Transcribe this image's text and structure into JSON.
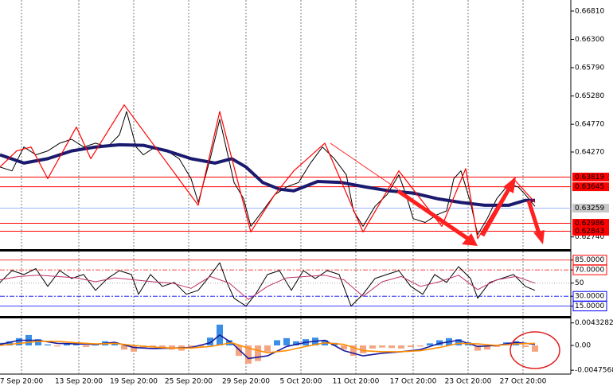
{
  "chart_data": [
    {
      "type": "line",
      "xlim": [
        0,
        239
      ],
      "ylim": [
        0.6252,
        0.6701
      ],
      "grid": true,
      "yticks": [
        {
          "value": 0.6681,
          "label": "0.66810"
        },
        {
          "value": 0.663,
          "label": "0.66300"
        },
        {
          "value": 0.6579,
          "label": "0.65790"
        },
        {
          "value": 0.6528,
          "label": "0.65280"
        },
        {
          "value": 0.6477,
          "label": "0.64770"
        },
        {
          "value": 0.6427,
          "label": "0.64270"
        },
        {
          "value": 0.6274,
          "label": "0.62740"
        }
      ],
      "levels": [
        {
          "value": 0.63819,
          "color": "#ff0000"
        },
        {
          "value": 0.63645,
          "color": "#ff0000"
        },
        {
          "value": 0.63259,
          "color": "#9db4ff"
        },
        {
          "value": 0.62986,
          "color": "#ff0000"
        },
        {
          "value": 0.62843,
          "color": "#ff0000"
        }
      ],
      "series": [
        {
          "color": "#000000",
          "width": 1,
          "x": [
            0,
            5,
            10,
            15,
            20,
            25,
            30,
            35,
            40,
            45,
            50,
            53,
            57,
            60,
            65,
            70,
            75,
            80,
            83,
            88,
            92,
            95,
            98,
            102,
            105,
            110,
            115,
            120,
            125,
            130,
            135,
            140,
            145,
            148,
            152,
            157,
            162,
            167,
            170,
            173,
            178,
            183,
            187,
            190,
            193,
            197,
            200,
            204,
            208,
            213,
            217,
            220,
            224
          ],
          "values": [
            0.64,
            0.6393,
            0.6436,
            0.6422,
            0.6429,
            0.6443,
            0.645,
            0.6436,
            0.6443,
            0.6436,
            0.6458,
            0.65,
            0.6436,
            0.6422,
            0.6436,
            0.6429,
            0.6415,
            0.6379,
            0.6336,
            0.6415,
            0.6486,
            0.6429,
            0.6372,
            0.6343,
            0.6293,
            0.6321,
            0.635,
            0.6364,
            0.6372,
            0.6407,
            0.6436,
            0.6415,
            0.6386,
            0.6321,
            0.6293,
            0.6329,
            0.635,
            0.6386,
            0.635,
            0.6307,
            0.63,
            0.6314,
            0.6321,
            0.6379,
            0.6393,
            0.6336,
            0.6278,
            0.6307,
            0.6343,
            0.6369,
            0.6364,
            0.635,
            0.6329
          ]
        },
        {
          "color": "#1a1a6e",
          "width": 4,
          "x": [
            0,
            10,
            20,
            30,
            40,
            50,
            60,
            70,
            80,
            90,
            97,
            103,
            110,
            117,
            123,
            133,
            143,
            153,
            163,
            173,
            183,
            193,
            203,
            213,
            220,
            224
          ],
          "values": [
            0.6422,
            0.6407,
            0.6415,
            0.6429,
            0.6436,
            0.644,
            0.6439,
            0.6429,
            0.6415,
            0.6407,
            0.6415,
            0.64,
            0.6372,
            0.636,
            0.6357,
            0.6374,
            0.6372,
            0.6364,
            0.6357,
            0.6353,
            0.6343,
            0.6336,
            0.6331,
            0.6331,
            0.634,
            0.634
          ]
        },
        {
          "color": "#ff0000",
          "width": 1.2,
          "x": [
            0,
            7,
            13,
            20,
            32,
            38,
            52,
            65,
            83,
            92,
            105,
            115,
            123,
            136,
            152,
            167,
            185,
            195,
            200,
            215,
            224
          ],
          "values": [
            0.64,
            0.6429,
            0.6436,
            0.6379,
            0.6472,
            0.6415,
            0.6512,
            0.6436,
            0.6331,
            0.65,
            0.6283,
            0.635,
            0.6393,
            0.6443,
            0.6283,
            0.6393,
            0.6293,
            0.6397,
            0.6271,
            0.6379,
            0.6336
          ]
        }
      ]
    },
    {
      "type": "line",
      "xlim": [
        0,
        239
      ],
      "ylim": [
        0,
        98
      ],
      "yticks": [
        {
          "value": 85,
          "label": "85.0000"
        },
        {
          "value": 70,
          "label": "70.0000"
        },
        50,
        {
          "value": 30,
          "label": "30.0000"
        },
        {
          "value": 15,
          "label": "15.0000"
        }
      ],
      "ytick_colors": [
        "#ff0000",
        "#ff0000",
        "#999999",
        "#0000ff",
        "#0000ff"
      ],
      "series": [
        {
          "color": "#000000",
          "width": 1,
          "x": [
            0,
            5,
            10,
            15,
            20,
            25,
            30,
            35,
            40,
            45,
            50,
            55,
            58,
            63,
            68,
            73,
            78,
            83,
            87,
            92,
            95,
            98,
            103,
            107,
            112,
            117,
            122,
            127,
            132,
            137,
            142,
            147,
            152,
            157,
            162,
            167,
            172,
            177,
            182,
            187,
            192,
            197,
            200,
            205,
            210,
            215,
            220,
            224
          ],
          "values": [
            51,
            69,
            63,
            72,
            45,
            69,
            57,
            63,
            39,
            57,
            69,
            63,
            33,
            63,
            45,
            51,
            33,
            39,
            57,
            81,
            51,
            27,
            15,
            33,
            63,
            69,
            39,
            69,
            57,
            69,
            63,
            15,
            33,
            57,
            63,
            69,
            45,
            33,
            63,
            51,
            75,
            57,
            27,
            51,
            57,
            63,
            45,
            39
          ]
        },
        {
          "color": "#c0306a",
          "width": 1,
          "x": [
            0,
            8,
            16,
            24,
            32,
            40,
            48,
            56,
            64,
            72,
            80,
            88,
            96,
            104,
            112,
            120,
            128,
            136,
            144,
            152,
            160,
            168,
            176,
            184,
            192,
            200,
            208,
            216,
            224
          ],
          "values": [
            55,
            60,
            62,
            60,
            58,
            52,
            58,
            55,
            52,
            50,
            42,
            60,
            50,
            25,
            45,
            58,
            60,
            62,
            55,
            30,
            52,
            60,
            45,
            52,
            62,
            40,
            55,
            60,
            50
          ]
        }
      ]
    },
    {
      "type": "line",
      "xlim": [
        0,
        239
      ],
      "ylim": [
        -0.0055,
        0.0052
      ],
      "yticks": [
        0.0043282,
        {
          "value": 0,
          "label": "0.00"
        },
        -0.0047568
      ],
      "xticks": [
        {
          "value": 9,
          "label": "7 Sep 20:00"
        },
        {
          "value": 33,
          "label": "13 Sep 20:00"
        },
        {
          "value": 56,
          "label": "19 Sep 20:00"
        },
        {
          "value": 79,
          "label": "25 Sep 20:00"
        },
        {
          "value": 103,
          "label": "29 Sep 20:00"
        },
        {
          "value": 126,
          "label": "5 Oct 20:00"
        },
        {
          "value": 149,
          "label": "11 Oct 20:00"
        },
        {
          "value": 173,
          "label": "17 Oct 20:00"
        },
        {
          "value": 196,
          "label": "23 Oct 20:00"
        },
        {
          "value": 219,
          "label": "27 Oct 20:00"
        }
      ],
      "series": [
        {
          "kind": "bar",
          "color": "#3a8ee6",
          "negative_color": "#f4a582",
          "x": [
            0,
            4,
            8,
            12,
            16,
            20,
            24,
            28,
            32,
            36,
            40,
            44,
            48,
            52,
            56,
            60,
            64,
            68,
            72,
            76,
            80,
            84,
            88,
            92,
            96,
            100,
            104,
            108,
            112,
            116,
            120,
            124,
            128,
            132,
            136,
            140,
            144,
            148,
            152,
            156,
            160,
            164,
            168,
            172,
            176,
            180,
            184,
            188,
            192,
            196,
            200,
            204,
            208,
            212,
            216,
            220,
            224
          ],
          "values": [
            0.0005,
            0.0008,
            0.0014,
            0.002,
            0.0012,
            0.0002,
            -0.0002,
            0.0003,
            0.0005,
            -0.0003,
            0.0002,
            0.0008,
            0.0006,
            -0.0008,
            -0.0012,
            -0.0005,
            -0.0003,
            -0.0006,
            -0.0008,
            -0.001,
            -0.0006,
            -0.0002,
            0.0015,
            0.004,
            0.001,
            -0.002,
            -0.0035,
            -0.003,
            -0.0012,
            0.001,
            0.0014,
            0.0008,
            0.0012,
            0.0015,
            0.001,
            0.0005,
            -0.0008,
            -0.002,
            -0.0015,
            -0.0006,
            -0.0004,
            -0.0005,
            -0.0006,
            -0.0003,
            -0.0002,
            0.0004,
            0.001,
            0.0014,
            0.0012,
            0.0006,
            -0.001,
            -0.0008,
            -0.0003,
            0.0006,
            0.0008,
            -0.0003,
            -0.0012
          ]
        },
        {
          "color": "#1a1a9e",
          "width": 1.6,
          "x": [
            0,
            8,
            16,
            24,
            32,
            40,
            48,
            56,
            64,
            72,
            80,
            88,
            92,
            97,
            104,
            112,
            120,
            128,
            136,
            144,
            152,
            160,
            168,
            176,
            184,
            192,
            200,
            208,
            216,
            224
          ],
          "values": [
            0.0002,
            0.001,
            0.001,
            0.0004,
            0.0003,
            0.0002,
            0.0006,
            -0.0004,
            -0.0006,
            -0.0005,
            -0.0004,
            0.0005,
            0.002,
            0.0005,
            -0.0025,
            -0.002,
            -0.0002,
            0.0006,
            0.001,
            -0.001,
            -0.002,
            -0.0015,
            -0.0012,
            -0.0008,
            0.0004,
            0.001,
            -0.0002,
            0,
            0.0006,
            0.0002
          ]
        },
        {
          "color": "#ff8c00",
          "width": 1.6,
          "x": [
            0,
            8,
            16,
            24,
            32,
            40,
            48,
            56,
            64,
            72,
            80,
            88,
            97,
            104,
            112,
            120,
            128,
            136,
            144,
            152,
            160,
            168,
            176,
            184,
            192,
            200,
            208,
            216,
            224
          ],
          "values": [
            0,
            0.0004,
            0.0008,
            0.0008,
            0.0005,
            0.0003,
            0.0004,
            0,
            -0.0003,
            -0.0005,
            -0.0005,
            -0.0002,
            0.0005,
            -0.0005,
            -0.0014,
            -0.001,
            -0.0002,
            0.0005,
            0.0002,
            -0.001,
            -0.0012,
            -0.0012,
            -0.001,
            -0.0004,
            0.0004,
            0.0003,
            0,
            0.0003,
            0.0004
          ]
        }
      ]
    }
  ]
}
